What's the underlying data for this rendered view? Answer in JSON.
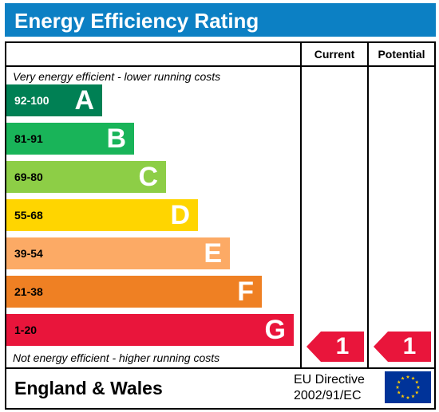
{
  "header": {
    "title": "Energy Efficiency Rating"
  },
  "columns": {
    "current": "Current",
    "potential": "Potential"
  },
  "captions": {
    "top": "Very energy efficient - lower running costs",
    "bottom": "Not energy efficient - higher running costs"
  },
  "bands": [
    {
      "range": "92-100",
      "letter": "A",
      "color": "#008054",
      "text_color": "#ffffff"
    },
    {
      "range": "81-91",
      "letter": "B",
      "color": "#19b459",
      "text_color": "#000000"
    },
    {
      "range": "69-80",
      "letter": "C",
      "color": "#8dce46",
      "text_color": "#000000"
    },
    {
      "range": "55-68",
      "letter": "D",
      "color": "#ffd500",
      "text_color": "#000000"
    },
    {
      "range": "39-54",
      "letter": "E",
      "color": "#fcaa65",
      "text_color": "#000000"
    },
    {
      "range": "21-38",
      "letter": "F",
      "color": "#ef8023",
      "text_color": "#000000"
    },
    {
      "range": "1-20",
      "letter": "G",
      "color": "#e9153b",
      "text_color": "#000000"
    }
  ],
  "ratings": {
    "current": {
      "value": "1",
      "band": "G",
      "color": "#e9153b"
    },
    "potential": {
      "value": "1",
      "band": "G",
      "color": "#e9153b"
    }
  },
  "footer": {
    "region": "England & Wales",
    "directive_line1": "EU Directive",
    "directive_line2": "2002/91/EC",
    "flag_color": "#003399",
    "star_color": "#ffcc00"
  }
}
